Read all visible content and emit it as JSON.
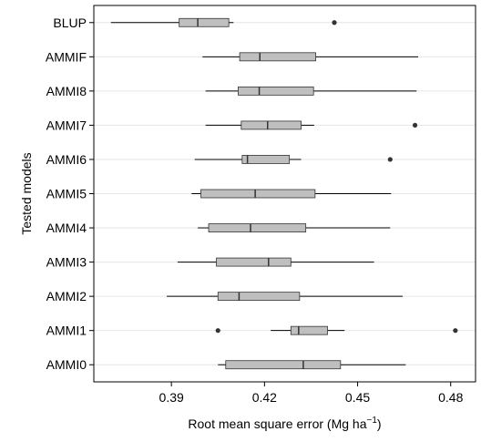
{
  "chart_data": {
    "type": "boxplot",
    "orientation": "horizontal",
    "xlabel": "Root mean square error (Mg ha",
    "xlabel_superscript": "−1",
    "xlabel_close": ")",
    "ylabel": "Tested models",
    "xlim": [
      0.365,
      0.488
    ],
    "x_ticks": [
      0.39,
      0.42,
      0.45,
      0.48
    ],
    "x_tick_labels": [
      "0.39",
      "0.42",
      "0.45",
      "0.48"
    ],
    "grid": "horizontal",
    "box_color": "#bfbfbf",
    "categories": [
      "BLUP",
      "AMMIF",
      "AMMI8",
      "AMMI7",
      "AMMI6",
      "AMMI5",
      "AMMI4",
      "AMMI3",
      "AMMI2",
      "AMMI1",
      "AMMI0"
    ],
    "boxes": [
      {
        "label": "BLUP",
        "whisker_low": 0.3705,
        "q1": 0.3925,
        "median": 0.3985,
        "q3": 0.4085,
        "whisker_high": 0.41,
        "outliers": [
          0.4425
        ]
      },
      {
        "label": "AMMIF",
        "whisker_low": 0.4,
        "q1": 0.412,
        "median": 0.4185,
        "q3": 0.4365,
        "whisker_high": 0.4695,
        "outliers": []
      },
      {
        "label": "AMMI8",
        "whisker_low": 0.401,
        "q1": 0.4115,
        "median": 0.4183,
        "q3": 0.4358,
        "whisker_high": 0.469,
        "outliers": []
      },
      {
        "label": "AMMI7",
        "whisker_low": 0.401,
        "q1": 0.4125,
        "median": 0.421,
        "q3": 0.4318,
        "whisker_high": 0.436,
        "outliers": [
          0.4685
        ]
      },
      {
        "label": "AMMI6",
        "whisker_low": 0.3975,
        "q1": 0.4128,
        "median": 0.4145,
        "q3": 0.428,
        "whisker_high": 0.4318,
        "outliers": [
          0.4605
        ]
      },
      {
        "label": "AMMI5",
        "whisker_low": 0.3965,
        "q1": 0.3995,
        "median": 0.417,
        "q3": 0.4363,
        "whisker_high": 0.4608,
        "outliers": []
      },
      {
        "label": "AMMI4",
        "whisker_low": 0.3985,
        "q1": 0.402,
        "median": 0.4155,
        "q3": 0.4333,
        "whisker_high": 0.4605,
        "outliers": []
      },
      {
        "label": "AMMI3",
        "whisker_low": 0.392,
        "q1": 0.4045,
        "median": 0.4213,
        "q3": 0.4285,
        "whisker_high": 0.4553,
        "outliers": []
      },
      {
        "label": "AMMI2",
        "whisker_low": 0.3885,
        "q1": 0.405,
        "median": 0.4118,
        "q3": 0.4313,
        "whisker_high": 0.4645,
        "outliers": []
      },
      {
        "label": "AMMI1",
        "whisker_low": 0.422,
        "q1": 0.4285,
        "median": 0.431,
        "q3": 0.4403,
        "whisker_high": 0.4458,
        "outliers": [
          0.405,
          0.4815
        ]
      },
      {
        "label": "AMMI0",
        "whisker_low": 0.405,
        "q1": 0.4075,
        "median": 0.4325,
        "q3": 0.4445,
        "whisker_high": 0.4655,
        "outliers": []
      }
    ]
  }
}
